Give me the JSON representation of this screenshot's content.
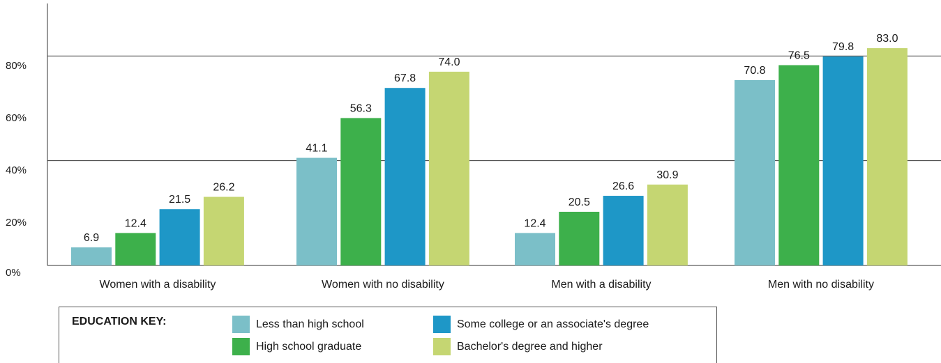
{
  "chart_data": {
    "type": "bar",
    "categories": [
      "Women with a disability",
      "Women with no disability",
      "Men with a disability",
      "Men with no disability"
    ],
    "series": [
      {
        "name": "Less than high school",
        "color": "#7bbfc8",
        "values": [
          6.9,
          41.1,
          12.4,
          70.8
        ]
      },
      {
        "name": "High school graduate",
        "color": "#3db04b",
        "values": [
          12.4,
          56.3,
          20.5,
          76.5
        ]
      },
      {
        "name": "Some college or an associate's degree",
        "color": "#1e97c7",
        "values": [
          21.5,
          67.8,
          26.6,
          79.8
        ]
      },
      {
        "name": "Bachelor's degree and higher",
        "color": "#c5d672",
        "values": [
          26.2,
          74.0,
          30.9,
          83.0
        ]
      }
    ],
    "value_labels": [
      [
        "6.9",
        "41.1",
        "12.4",
        "70.8"
      ],
      [
        "12.4",
        "56.3",
        "20.5",
        "76.5"
      ],
      [
        "21.5",
        "67.8",
        "26.6",
        "79.8"
      ],
      [
        "26.2",
        "74.0",
        "30.9",
        "83.0"
      ]
    ],
    "yticks": [
      {
        "value": 0,
        "label": "0%"
      },
      {
        "value": 20,
        "label": "20%"
      },
      {
        "value": 40,
        "label": "40%"
      },
      {
        "value": 60,
        "label": "60%"
      },
      {
        "value": 80,
        "label": "80%"
      }
    ],
    "ylim": [
      0,
      100
    ],
    "gridlines": [
      40,
      80
    ],
    "legend_title": "EDUCATION KEY:",
    "legend_position": "bottom"
  }
}
